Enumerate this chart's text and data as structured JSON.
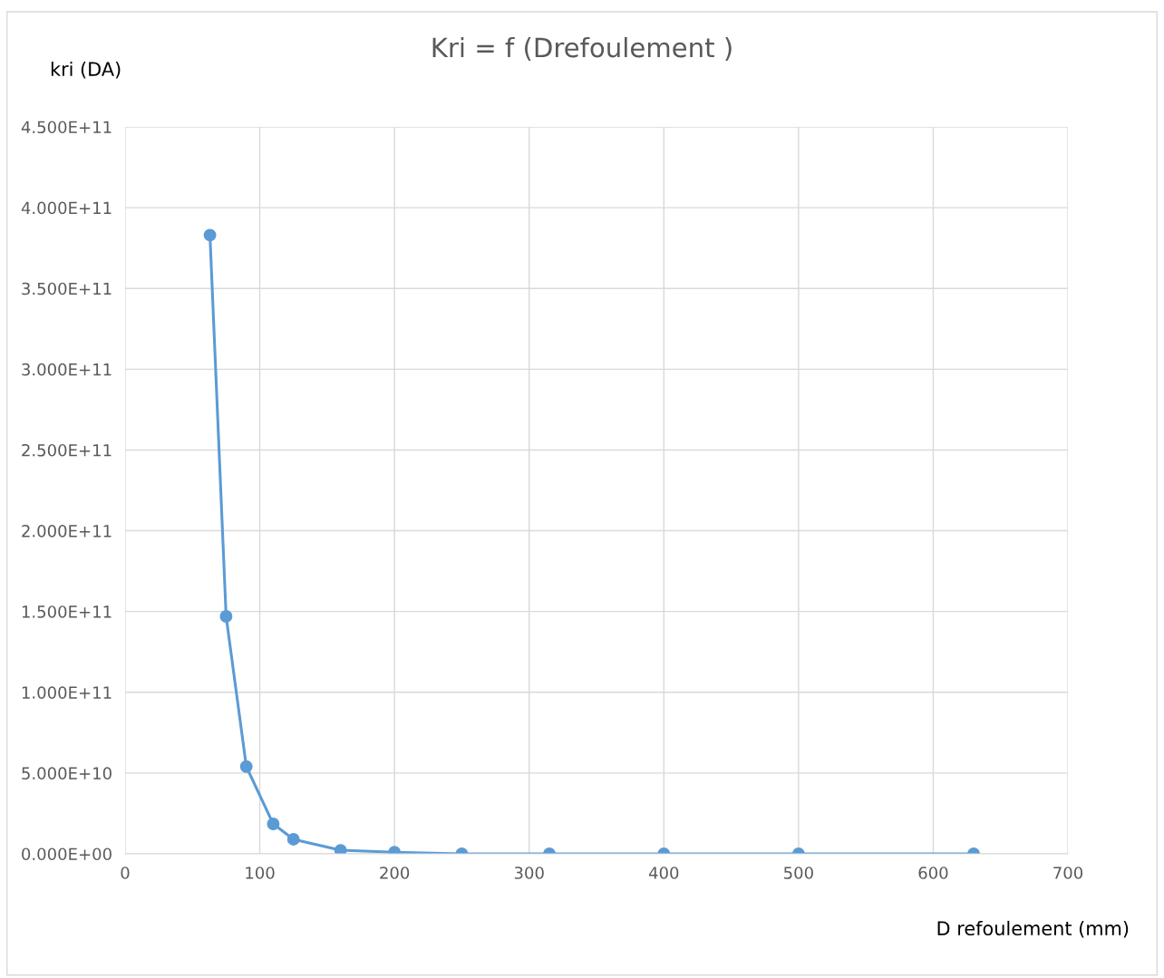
{
  "chart_data": {
    "type": "line",
    "title": "Kri = f (Drefoulement )",
    "xlabel": "D refoulement (mm)",
    "ylabel": "kri (DA)",
    "x": [
      63,
      75,
      90,
      110,
      125,
      160,
      200,
      250,
      315,
      400,
      500,
      630
    ],
    "series": [
      {
        "color": "#5b9bd5",
        "values": [
          383000000000.0,
          147000000000.0,
          54000000000.0,
          18500000000.0,
          9000000000.0,
          2200000000.0,
          1000000000.0,
          0,
          0,
          0,
          0,
          0
        ]
      }
    ],
    "xlim": [
      0,
      700
    ],
    "xticks": [
      0,
      100,
      200,
      300,
      400,
      500,
      600,
      700
    ],
    "ylim": [
      0,
      450000000000.0
    ],
    "yticks": [
      {
        "value": 0,
        "label": "0.000E+00"
      },
      {
        "value": 50000000000.0,
        "label": "5.000E+10"
      },
      {
        "value": 100000000000.0,
        "label": "1.000E+11"
      },
      {
        "value": 150000000000.0,
        "label": "1.500E+11"
      },
      {
        "value": 200000000000.0,
        "label": "2.000E+11"
      },
      {
        "value": 250000000000.0,
        "label": "2.500E+11"
      },
      {
        "value": 300000000000.0,
        "label": "3.000E+11"
      },
      {
        "value": 350000000000.0,
        "label": "3.500E+11"
      },
      {
        "value": 400000000000.0,
        "label": "4.000E+11"
      },
      {
        "value": 450000000000.0,
        "label": "4.500E+11"
      }
    ],
    "grid": true,
    "marker": "circle",
    "line_style": "solid"
  }
}
